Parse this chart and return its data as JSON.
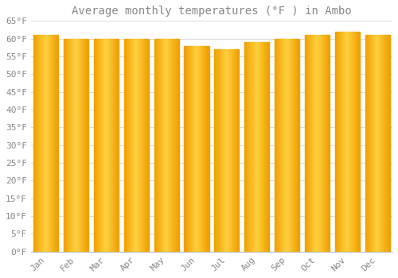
{
  "title": "Average monthly temperatures (°F ) in Ambo",
  "months": [
    "Jan",
    "Feb",
    "Mar",
    "Apr",
    "May",
    "Jun",
    "Jul",
    "Aug",
    "Sep",
    "Oct",
    "Nov",
    "Dec"
  ],
  "values": [
    61,
    60,
    60,
    60,
    60,
    58,
    57,
    59,
    60,
    61,
    62,
    61
  ],
  "bar_color_edge": "#F0A000",
  "bar_color_center": "#FFD040",
  "background_color": "#FFFFFF",
  "plot_bg_color": "#FFFFFF",
  "grid_color": "#DDDDDD",
  "text_color": "#888888",
  "ylim": [
    0,
    65
  ],
  "ytick_step": 5,
  "bar_width": 0.82,
  "title_fontsize": 10,
  "tick_fontsize": 8,
  "gradient_segments": 30
}
